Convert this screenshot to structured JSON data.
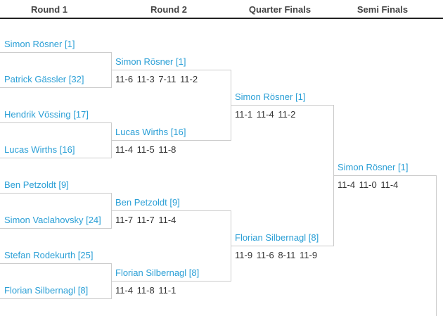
{
  "headers": [
    "Round 1",
    "Round 2",
    "Quarter Finals",
    "Semi Finals"
  ],
  "round1": [
    {
      "top": "Simon Rösner [1]",
      "bottom": "Patrick Gässler [32]"
    },
    {
      "top": "Hendrik Vössing [17]",
      "bottom": "Lucas Wirths [16]"
    },
    {
      "top": "Ben Petzoldt [9]",
      "bottom": "Simon Vaclahovsky [24]"
    },
    {
      "top": "Stefan Rodekurth [25]",
      "bottom": "Florian Silbernagl [8]"
    }
  ],
  "round2": [
    {
      "top": "Simon Rösner [1]",
      "top_score": "11-6 11-3 7-11 11-2",
      "bottom": "Lucas Wirths [16]",
      "bottom_score": "11-4 11-5 11-8"
    },
    {
      "top": "Ben Petzoldt [9]",
      "top_score": "11-7 11-7 11-4",
      "bottom": "Florian Silbernagl [8]",
      "bottom_score": "11-4 11-8 11-1"
    }
  ],
  "quarter_finals": [
    {
      "top": "Simon Rösner [1]",
      "top_score": "11-1 11-4 11-2",
      "bottom": "Florian Silbernagl [8]",
      "bottom_score": "11-9 11-6 8-11 11-9"
    }
  ],
  "semi_finals": [
    {
      "top": "Simon Rösner [1]",
      "top_score": "11-4 11-0 11-4"
    }
  ],
  "colors": {
    "player_link": "#2a9fd6",
    "score_text": "#333333",
    "line": "#cccccc"
  }
}
